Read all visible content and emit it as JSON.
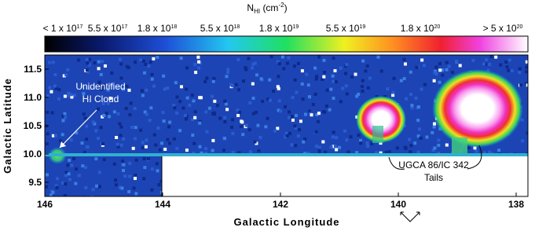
{
  "chart_data": {
    "type": "image",
    "colorbar": {
      "title": "N",
      "title_sub": "HI",
      "title_unit": "(cm",
      "title_exp": "-2",
      "title_end": ")",
      "labels": [
        {
          "text": "< 1 x 10",
          "exp": "17"
        },
        {
          "text": "5.5 x 10",
          "exp": "17"
        },
        {
          "text": "1.8 x 10",
          "exp": "18"
        },
        {
          "text": "5.5 x 10",
          "exp": "18"
        },
        {
          "text": "1.8 x 10",
          "exp": "19"
        },
        {
          "text": "5.5 x 10",
          "exp": "19"
        },
        {
          "text": "1.8 x 10",
          "exp": "20"
        },
        {
          "text": "> 5 x 10",
          "exp": "20"
        }
      ]
    },
    "xlabel": "Galactic Longitude",
    "ylabel": "Galactic Latitude",
    "xlim": [
      146,
      137.8
    ],
    "xticks": [
      146,
      144,
      142,
      140,
      138
    ],
    "ylim": [
      9.25,
      11.75
    ],
    "yticks": [
      {
        "value": 9.5,
        "label": "9.5"
      },
      {
        "value": 10,
        "label": "10.0"
      },
      {
        "value": 10.5,
        "label": "10.5"
      },
      {
        "value": 11,
        "label": "11.0"
      },
      {
        "value": 11.5,
        "label": "11.5"
      }
    ],
    "annotations": [
      {
        "lines": [
          "Unidentified",
          "HI Cloud"
        ]
      },
      {
        "lines": [
          "UGCA 86/IC 342",
          "Tails"
        ]
      }
    ]
  }
}
